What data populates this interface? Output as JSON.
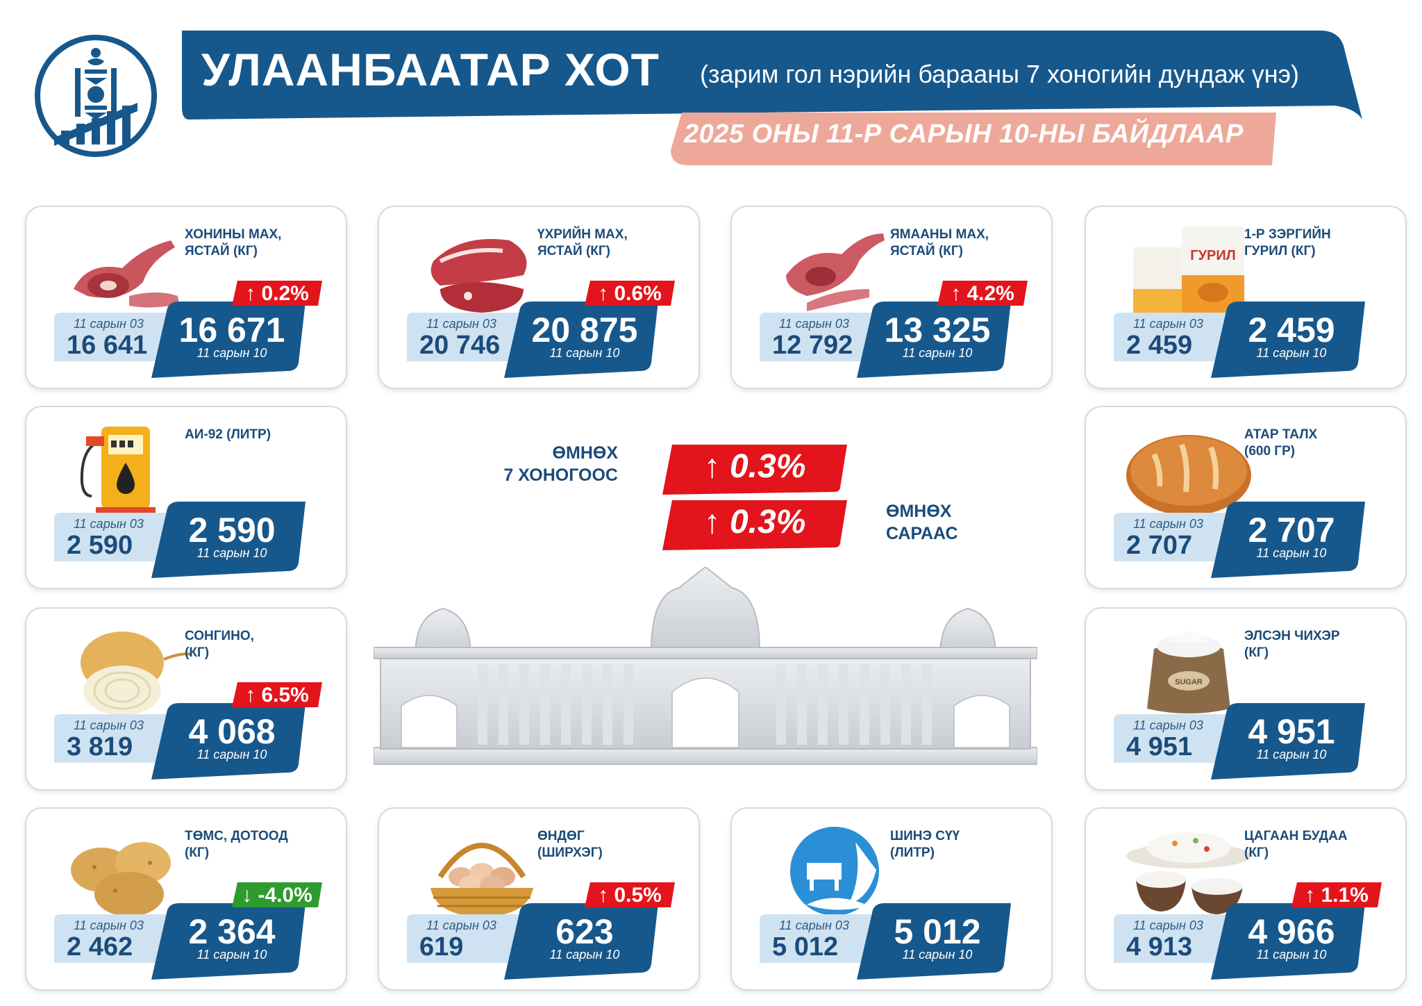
{
  "header": {
    "title": "УЛААНБААТАР ХОТ",
    "subtitle": "(зарим гол нэрийн барааны 7 хоногийн дундаж үнэ)",
    "date": "2025 ОНЫ 11-Р САРЫН 10-НЫ БАЙДЛААР"
  },
  "colors": {
    "brand_blue": "#17588c",
    "light_blue": "#cfe2f1",
    "badge_red": "#e3141b",
    "badge_green": "#2e9b2e",
    "date_band": "#eea899"
  },
  "items": [
    {
      "name": "ХОНИНЫ МАХ,\nЯСТАЙ (КГ)",
      "prev_label": "11 сарын 03",
      "prev": "16 641",
      "cur": "16 671",
      "cur_label": "11 сарын 10",
      "change": "↑ 0.2%",
      "dir": "up",
      "icon": "mutton-icon"
    },
    {
      "name": "ҮХРИЙН МАХ,\nЯСТАЙ (КГ)",
      "prev_label": "11 сарын 03",
      "prev": "20 746",
      "cur": "20 875",
      "cur_label": "11 сарын 10",
      "change": "↑ 0.6%",
      "dir": "up",
      "icon": "beef-icon"
    },
    {
      "name": "ЯМААНЫ МАХ,\nЯСТАЙ (КГ)",
      "prev_label": "11 сарын 03",
      "prev": "12 792",
      "cur": "13 325",
      "cur_label": "11 сарын 10",
      "change": "↑ 4.2%",
      "dir": "up",
      "icon": "goat-meat-icon"
    },
    {
      "name": "1-Р ЗЭРГИЙН\nГУРИЛ (КГ)",
      "prev_label": "11 сарын 03",
      "prev": "2 459",
      "cur": "2 459",
      "cur_label": "11 сарын 10",
      "change": "",
      "dir": "none",
      "icon": "flour-icon",
      "flour_label": "ГУРИЛ"
    },
    {
      "name": "АИ-92 (ЛИТР)",
      "prev_label": "11 сарын 03",
      "prev": "2 590",
      "cur": "2 590",
      "cur_label": "11 сарын 10",
      "change": "",
      "dir": "none",
      "icon": "fuel-pump-icon"
    },
    {
      "name": "АТАР ТАЛХ\n(600 ГР)",
      "prev_label": "11 сарын 03",
      "prev": "2 707",
      "cur": "2 707",
      "cur_label": "11 сарын 10",
      "change": "",
      "dir": "none",
      "icon": "bread-icon"
    },
    {
      "name": "СОНГИНО,\n(КГ)",
      "prev_label": "11 сарын 03",
      "prev": "3 819",
      "cur": "4 068",
      "cur_label": "11 сарын 10",
      "change": "↑ 6.5%",
      "dir": "up",
      "icon": "onion-icon"
    },
    {
      "name": "ЭЛСЭН ЧИХЭР\n(КГ)",
      "prev_label": "11 сарын 03",
      "prev": "4 951",
      "cur": "4 951",
      "cur_label": "11 сарын 10",
      "change": "",
      "dir": "none",
      "icon": "sugar-sack-icon",
      "sack_label": "SUGAR"
    },
    {
      "name": "ТӨМС, ДОТООД\n(КГ)",
      "prev_label": "11 сарын 03",
      "prev": "2 462",
      "cur": "2 364",
      "cur_label": "11 сарын 10",
      "change": "↓ -4.0%",
      "dir": "down",
      "icon": "potato-icon"
    },
    {
      "name": "ӨНДӨГ\n(ШИРХЭГ)",
      "prev_label": "11 сарын 03",
      "prev": "619",
      "cur": "623",
      "cur_label": "11 сарын 10",
      "change": "↑ 0.5%",
      "dir": "up",
      "icon": "egg-basket-icon"
    },
    {
      "name": "ШИНЭ СҮҮ\n(ЛИТР)",
      "prev_label": "11 сарын 03",
      "prev": "5 012",
      "cur": "5 012",
      "cur_label": "11 сарын 10",
      "change": "",
      "dir": "none",
      "icon": "milk-icon"
    },
    {
      "name": "ЦАГААН БУДАА\n(КГ)",
      "prev_label": "11 сарын 03",
      "prev": "4 913",
      "cur": "4 966",
      "cur_label": "11 сарын 10",
      "change": "↑ 1.1%",
      "dir": "up",
      "icon": "rice-icon"
    }
  ],
  "center": {
    "weekly_label": "ӨМНӨХ\n7 ХОНОГООС",
    "weekly_change": "↑ 0.3%",
    "monthly_label": "ӨМНӨХ\nСАРААС",
    "monthly_change": "↑ 0.3%"
  }
}
